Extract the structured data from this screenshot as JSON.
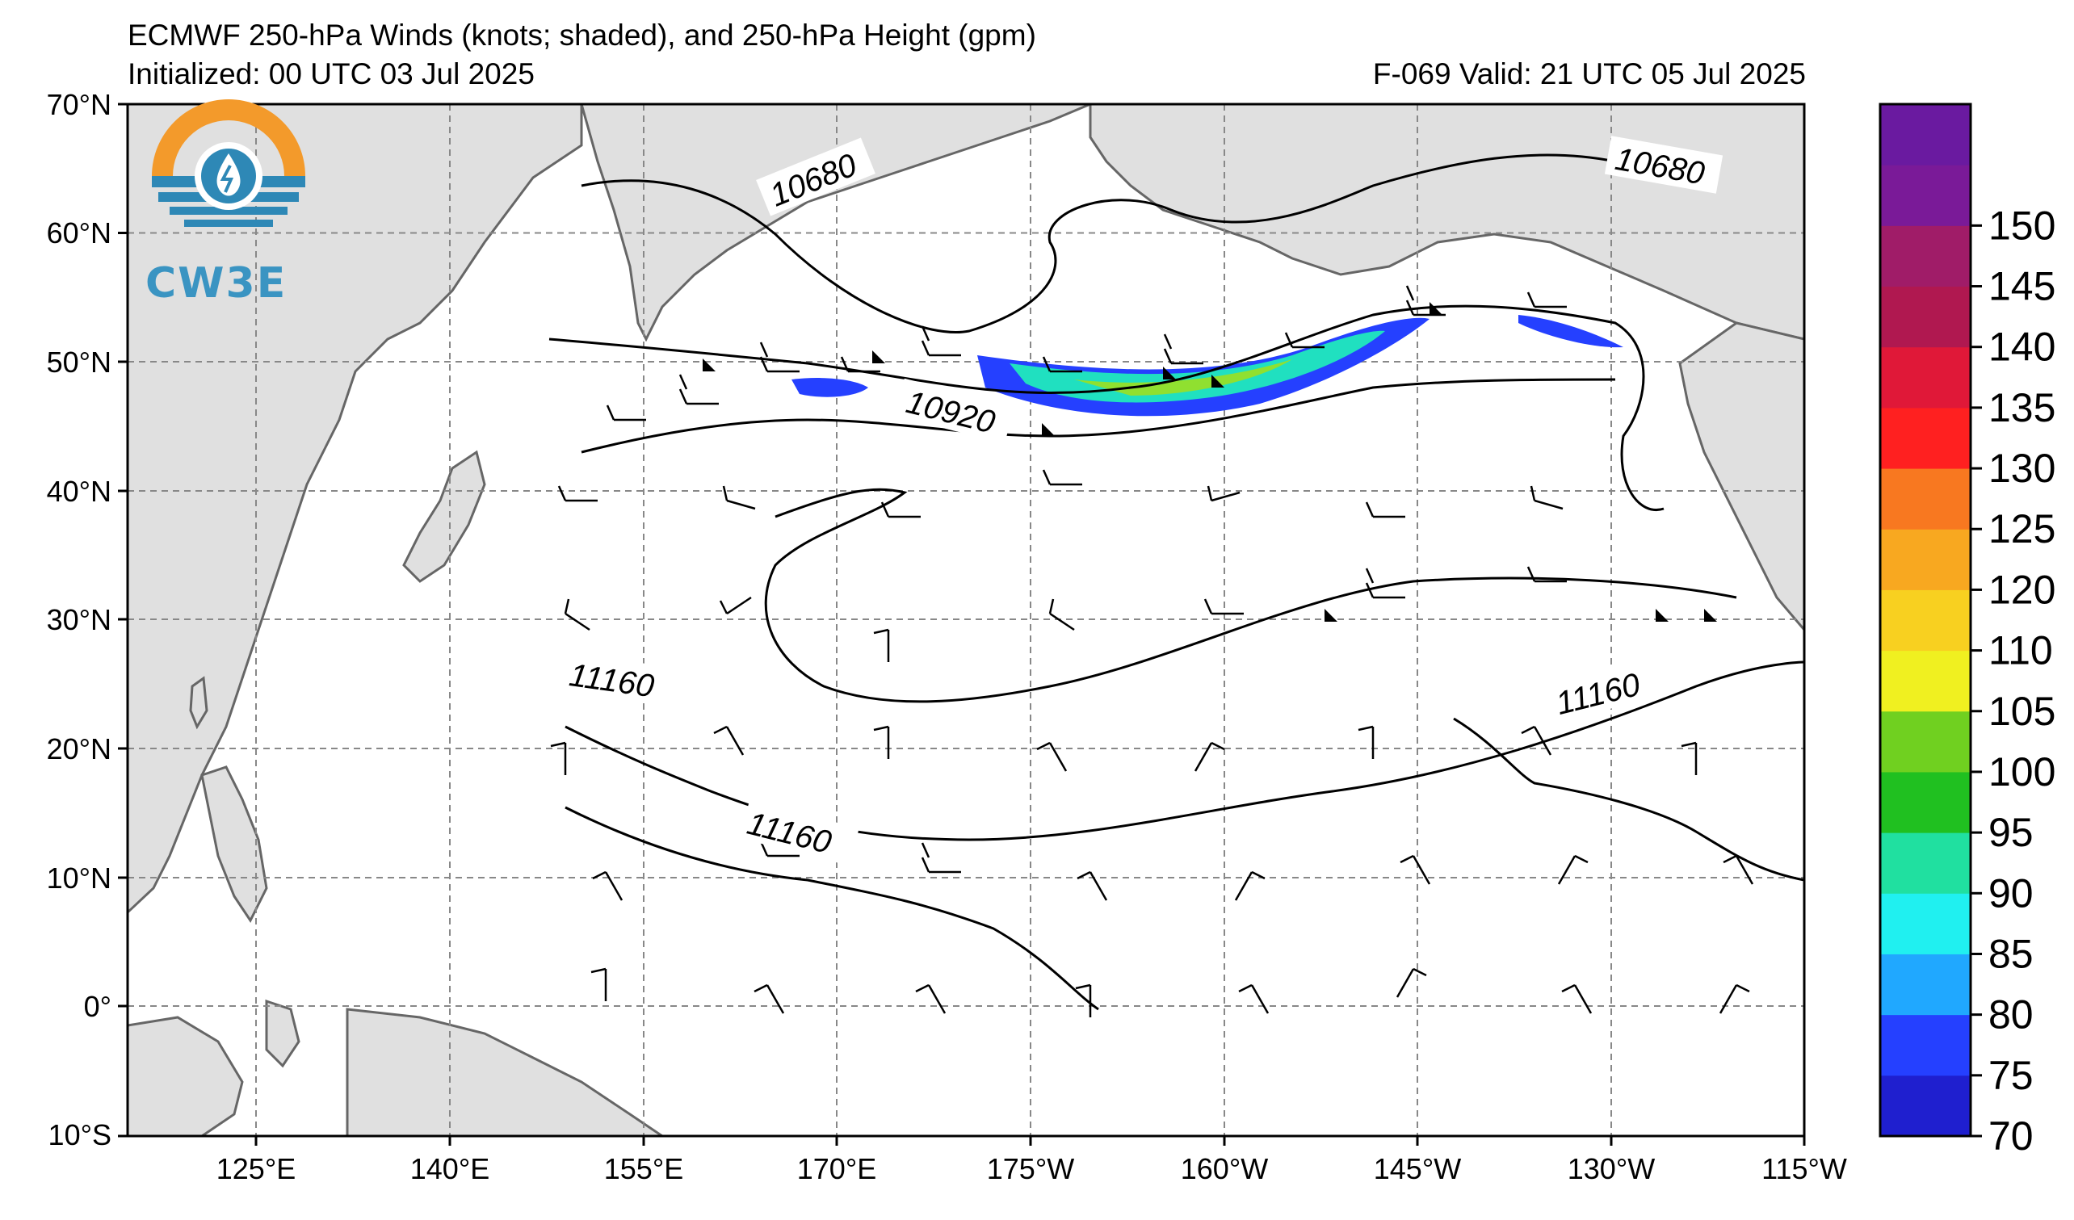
{
  "header": {
    "title": "ECMWF 250-hPa Winds (knots; shaded), and 250-hPa Height (gpm)",
    "initialized": "Initialized: 00 UTC 03 Jul 2025",
    "valid": "F-069  Valid: 21 UTC 05 Jul 2025"
  },
  "logo": {
    "text": "CW3E",
    "ring_color": "#f39a2b",
    "wave_color": "#2e88b6",
    "icon": "water-drop-icon"
  },
  "axes": {
    "lat_labels": [
      "70°N",
      "60°N",
      "50°N",
      "40°N",
      "30°N",
      "20°N",
      "10°N",
      "0°",
      "10°S"
    ],
    "lon_labels": [
      "125°E",
      "140°E",
      "155°E",
      "170°E",
      "175°W",
      "160°W",
      "145°W",
      "130°W",
      "115°W"
    ]
  },
  "contour_labels": [
    "10680",
    "10680",
    "10920",
    "11160",
    "11160",
    "11160"
  ],
  "colorbar": {
    "ticks": [
      "70",
      "75",
      "80",
      "85",
      "90",
      "95",
      "100",
      "105",
      "110",
      "120",
      "125",
      "130",
      "135",
      "140",
      "145",
      "150"
    ],
    "colors": [
      "#1f1fcf",
      "#2540ff",
      "#20a8ff",
      "#20f0f0",
      "#20e0a0",
      "#20c020",
      "#70d020",
      "#f0f020",
      "#f8d020",
      "#f8a820",
      "#f87820",
      "#ff2020",
      "#e01838",
      "#b01850",
      "#a01c68",
      "#7a1a98",
      "#6a1aa0"
    ]
  },
  "colors": {
    "land": "#e0e0e0",
    "coast": "#666666",
    "grid": "#888888"
  }
}
